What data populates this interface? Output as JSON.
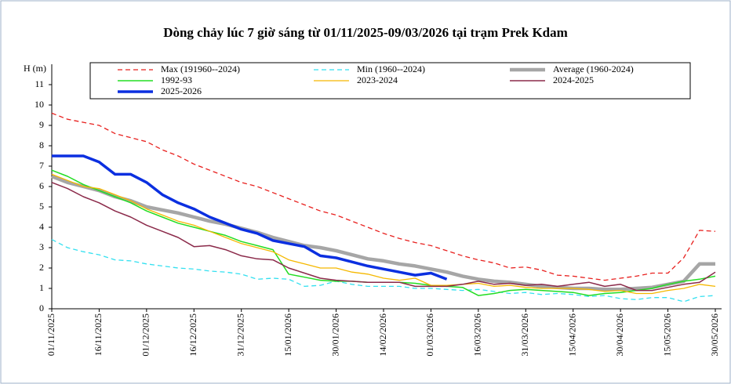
{
  "chart_data": {
    "type": "line",
    "title": "Dòng chảy lúc 7 giờ sáng từ 01/11/2025-09/03/2026 tại trạm Prek Kdam",
    "y_label": "H (m)",
    "categories": [
      "01/11/2025",
      null,
      null,
      "16/11/2025",
      null,
      null,
      "01/12/2025",
      null,
      null,
      "16/12/2025",
      null,
      null,
      "31/12/2025",
      null,
      null,
      "15/01/2026",
      null,
      null,
      "30/01/2026",
      null,
      null,
      "14/02/2026",
      null,
      null,
      "01/03/2026",
      null,
      null,
      "16/03/2026",
      null,
      null,
      "31/03/2026",
      null,
      null,
      "15/04/2026",
      null,
      null,
      "30/04/2026",
      null,
      null,
      "15/05/2026",
      null,
      null,
      "30/05/2026"
    ],
    "ylim": [
      0,
      12
    ],
    "yticks": [
      0,
      1,
      2,
      3,
      4,
      5,
      6,
      7,
      8,
      9,
      10,
      11
    ],
    "grid": false,
    "series": [
      {
        "name": "Max (191960--2024)",
        "color": "#e8201e",
        "line_style": "dashed",
        "values": [
          9.6,
          9.3,
          9.15,
          9.0,
          8.6,
          8.4,
          8.2,
          7.8,
          7.5,
          7.1,
          6.8,
          6.5,
          6.2,
          6.0,
          5.7,
          5.4,
          5.1,
          4.8,
          4.6,
          4.3,
          4.0,
          3.7,
          3.45,
          3.25,
          3.1,
          2.85,
          2.6,
          2.4,
          2.25,
          2.0,
          2.05,
          1.9,
          1.65,
          1.6,
          1.5,
          1.4,
          1.5,
          1.6,
          1.75,
          1.75,
          2.5,
          3.85,
          3.8
        ]
      },
      {
        "name": "Min (1960--2024)",
        "color": "#33e0f0",
        "line_style": "dashed",
        "values": [
          3.4,
          3.0,
          2.8,
          2.65,
          2.4,
          2.35,
          2.2,
          2.1,
          2.0,
          1.95,
          1.85,
          1.8,
          1.7,
          1.45,
          1.5,
          1.45,
          1.1,
          1.15,
          1.35,
          1.2,
          1.1,
          1.1,
          1.1,
          1.0,
          1.0,
          0.95,
          0.9,
          0.95,
          0.85,
          0.75,
          0.8,
          0.7,
          0.75,
          0.7,
          0.6,
          0.65,
          0.5,
          0.45,
          0.55,
          0.55,
          0.35,
          0.6,
          0.65
        ]
      },
      {
        "name": "Average (1960-2024)",
        "color": "#a6a6a6",
        "line_style": "solid",
        "values": [
          6.5,
          6.2,
          6.0,
          5.8,
          5.5,
          5.3,
          5.0,
          4.85,
          4.7,
          4.5,
          4.3,
          4.15,
          3.95,
          3.75,
          3.5,
          3.3,
          3.1,
          3.0,
          2.85,
          2.65,
          2.45,
          2.35,
          2.2,
          2.1,
          1.95,
          1.8,
          1.6,
          1.45,
          1.35,
          1.3,
          1.2,
          1.1,
          1.05,
          1.0,
          1.0,
          0.95,
          0.95,
          1.0,
          1.05,
          1.2,
          1.35,
          2.2,
          2.2
        ]
      },
      {
        "name": "1992-93",
        "color": "#22dd22",
        "line_style": "solid",
        "values": [
          6.8,
          6.5,
          6.1,
          5.8,
          5.5,
          5.2,
          4.8,
          4.5,
          4.2,
          4.0,
          3.8,
          3.6,
          3.3,
          3.1,
          2.9,
          1.7,
          1.55,
          1.4,
          1.35,
          1.35,
          1.3,
          1.3,
          1.3,
          1.25,
          1.15,
          1.1,
          1.05,
          0.65,
          0.75,
          0.9,
          0.95,
          0.9,
          0.85,
          0.8,
          0.65,
          0.75,
          0.8,
          0.9,
          1.0,
          1.2,
          1.35,
          1.45,
          1.6
        ]
      },
      {
        "name": "2023-2024",
        "color": "#f5b800",
        "line_style": "solid",
        "values": [
          6.6,
          6.3,
          6.0,
          5.9,
          5.6,
          5.3,
          4.9,
          4.6,
          4.3,
          4.1,
          3.8,
          3.5,
          3.2,
          3.0,
          2.8,
          2.4,
          2.2,
          2.0,
          2.0,
          1.8,
          1.7,
          1.5,
          1.4,
          1.5,
          1.15,
          1.15,
          1.2,
          1.25,
          1.1,
          1.15,
          1.05,
          1.0,
          1.0,
          1.0,
          0.95,
          0.85,
          0.9,
          0.75,
          0.75,
          0.9,
          1.0,
          1.2,
          1.1
        ]
      },
      {
        "name": "2024-2025",
        "color": "#8b2a4a",
        "line_style": "solid",
        "values": [
          6.2,
          5.9,
          5.5,
          5.2,
          4.8,
          4.5,
          4.1,
          3.8,
          3.5,
          3.05,
          3.1,
          2.9,
          2.6,
          2.45,
          2.4,
          2.0,
          1.75,
          1.5,
          1.4,
          1.35,
          1.3,
          1.3,
          1.3,
          1.1,
          1.1,
          1.1,
          1.2,
          1.35,
          1.2,
          1.25,
          1.15,
          1.2,
          1.1,
          1.2,
          1.3,
          1.1,
          1.2,
          0.9,
          0.9,
          1.05,
          1.2,
          1.3,
          1.8
        ]
      },
      {
        "name": "2025-2026",
        "color": "#0b2fe0",
        "line_style": "solid",
        "values": [
          7.5,
          7.5,
          7.5,
          7.2,
          6.6,
          6.6,
          6.2,
          5.6,
          5.2,
          4.9,
          4.5,
          4.2,
          3.9,
          3.7,
          3.35,
          3.2,
          3.05,
          2.6,
          2.5,
          2.3,
          2.1,
          1.95,
          1.8,
          1.65,
          1.75,
          1.45,
          null,
          null,
          null,
          null,
          null,
          null,
          null,
          null,
          null,
          null,
          null,
          null,
          null,
          null,
          null,
          null,
          null
        ]
      }
    ]
  }
}
